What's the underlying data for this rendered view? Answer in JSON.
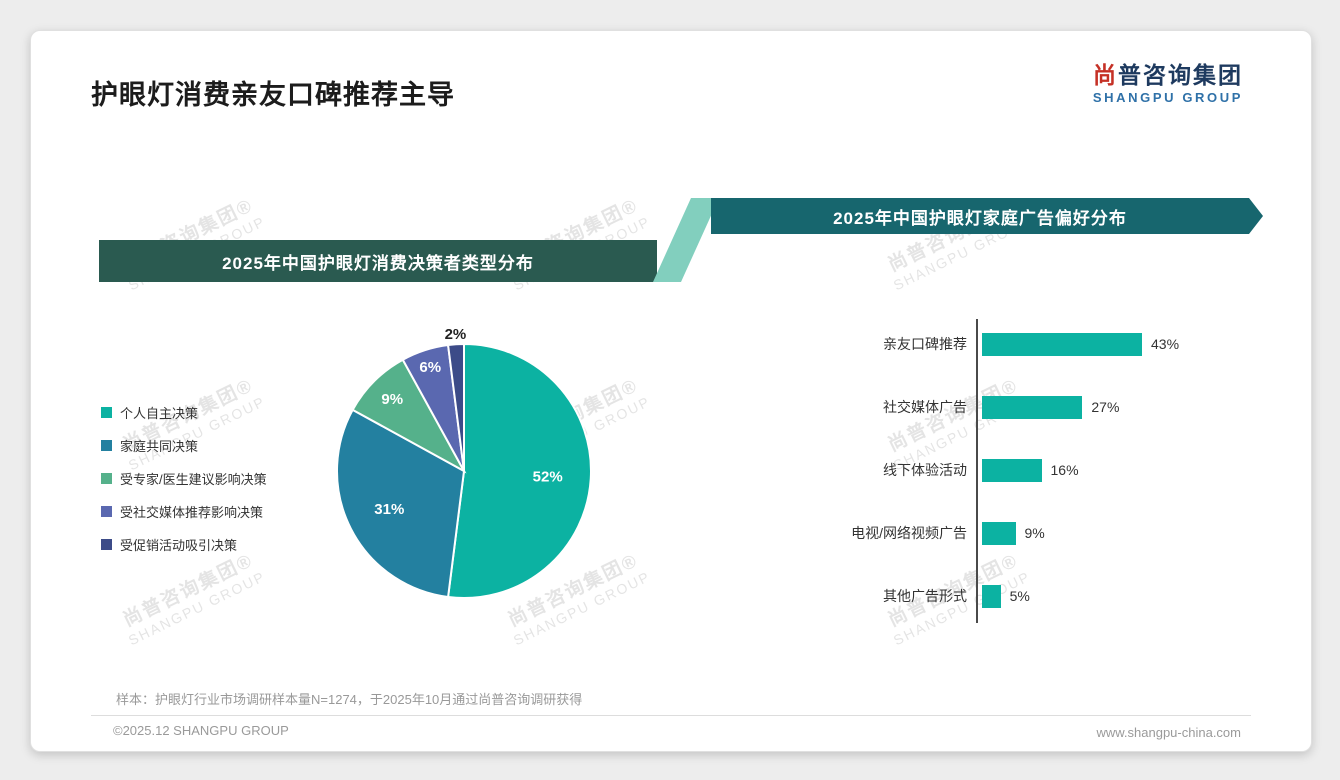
{
  "page": {
    "title": "护眼灯消费亲友口碑推荐主导",
    "logo": {
      "cn": "尚普咨询集团",
      "en": "SHANGPU GROUP"
    },
    "watermark": {
      "line1": "尚普咨询集团®",
      "line2": "SHANGPU GROUP"
    },
    "footer": {
      "sample_note": "样本：护眼灯行业市场调研样本量N=1274，于2025年10月通过尚普咨询调研获得",
      "copyright": "©2025.12 SHANGPU GROUP",
      "website": "www.shangpu-china.com"
    }
  },
  "banners": {
    "left_color": "#2a5a50",
    "right_color": "#17666e",
    "connector_color": "#82cfbe"
  },
  "chart_data": [
    {
      "type": "pie",
      "title": "2025年中国护眼灯消费决策者类型分布",
      "labels": [
        "个人自主决策",
        "家庭共同决策",
        "受专家/医生建议影响决策",
        "受社交媒体推荐影响决策",
        "受促销活动吸引决策"
      ],
      "values": [
        52,
        31,
        9,
        6,
        2
      ],
      "colors": [
        "#0cb2a2",
        "#2380a0",
        "#55b18b",
        "#5a68b0",
        "#3c4b88"
      ],
      "value_suffix": "%",
      "legend_position": "left",
      "start_angle_deg": -90,
      "direction": "clockwise"
    },
    {
      "type": "bar",
      "orientation": "horizontal",
      "title": "2025年中国护眼灯家庭广告偏好分布",
      "categories": [
        "亲友口碑推荐",
        "社交媒体广告",
        "线下体验活动",
        "电视/网络视频广告",
        "其他广告形式"
      ],
      "values": [
        43,
        27,
        16,
        9,
        5
      ],
      "bar_color": "#0cb2a2",
      "value_suffix": "%",
      "xlim": [
        0,
        50
      ],
      "grid": false
    }
  ]
}
